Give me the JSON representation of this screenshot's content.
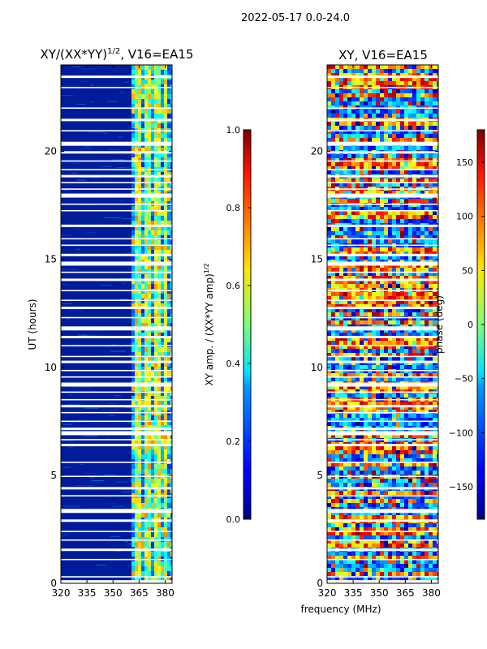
{
  "suptitle": "2022-05-17 0.0-24.0",
  "xlabel_shared": "frequency (MHz)",
  "chart_data": [
    {
      "type": "heatmap",
      "title_base": "XY/(XX*YY)",
      "title_exp": "1/2",
      "title_suffix": ", V16=EA15",
      "ylabel": "UT (hours)",
      "xlim": [
        320,
        384
      ],
      "ylim": [
        0,
        24
      ],
      "xticks": [
        320,
        335,
        350,
        365,
        380
      ],
      "yticks": [
        0,
        5,
        10,
        15,
        20
      ],
      "colorbar": {
        "label_base": "XY amp. / (XX*YY amp)",
        "label_exp": "1/2",
        "range": [
          0.0,
          1.0
        ],
        "ticks": [
          "0.0",
          "0.2",
          "0.4",
          "0.6",
          "0.8",
          "1.0"
        ],
        "colormap": "jet"
      }
    },
    {
      "type": "heatmap",
      "title": "XY, V16=EA15",
      "xlim": [
        320,
        384
      ],
      "ylim": [
        0,
        24
      ],
      "xticks": [
        320,
        335,
        350,
        365,
        380
      ],
      "yticks": [
        0,
        5,
        10,
        15,
        20
      ],
      "colorbar": {
        "label": "phase (deg)",
        "range": [
          -180,
          180
        ],
        "ticks": [
          "150",
          "100",
          "50",
          "0",
          "−50",
          "−100",
          "−150"
        ],
        "colormap": "jet"
      }
    }
  ],
  "gap_hours": [
    0.05,
    0.3,
    1.1,
    1.55,
    2.0,
    2.4,
    2.9,
    3.35,
    4.05,
    4.4,
    4.95,
    5.6,
    6.4,
    6.65,
    6.95,
    7.15,
    7.5,
    7.9,
    8.2,
    8.5,
    8.85,
    9.2,
    9.55,
    9.85,
    10.25,
    10.5,
    11.0,
    11.4,
    11.8,
    12.3,
    12.75,
    13.1,
    13.55,
    14.05,
    14.4,
    14.8,
    15.2,
    15.65,
    15.95,
    16.55,
    17.25,
    17.55,
    17.95,
    18.25,
    18.55,
    18.85,
    19.15,
    19.55,
    19.95,
    20.35,
    20.95,
    21.45,
    22.0,
    22.95,
    23.45
  ]
}
